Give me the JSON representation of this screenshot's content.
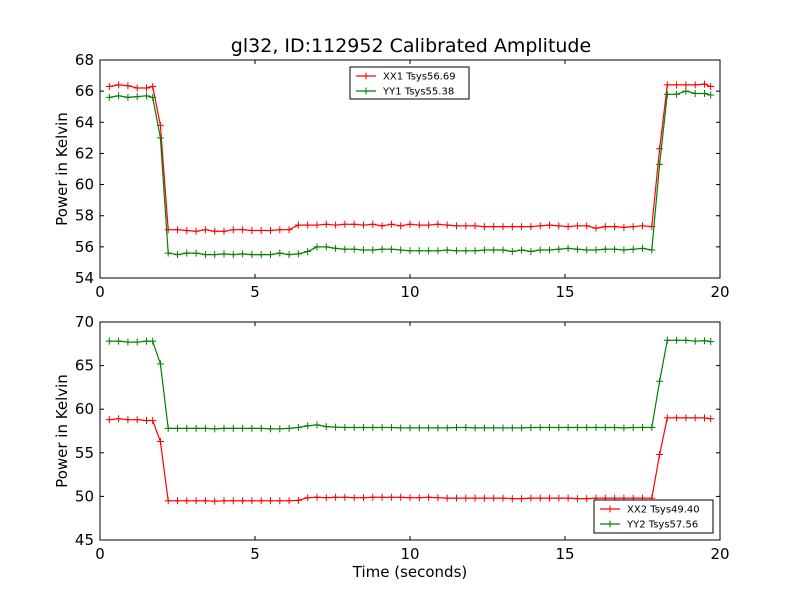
{
  "title": "gl32, ID:112952 Calibrated Amplitude",
  "xlabel": "Time (seconds)",
  "chart_data": [
    {
      "type": "line",
      "ylabel": "Power in Kelvin",
      "xlim": [
        0,
        20
      ],
      "ylim": [
        54,
        68
      ],
      "xticks": [
        0,
        5,
        10,
        15,
        20
      ],
      "yticks": [
        54,
        56,
        58,
        60,
        62,
        64,
        66,
        68
      ],
      "legend_position": "top-center",
      "grid": false,
      "x": [
        0.3,
        0.6,
        0.9,
        1.2,
        1.5,
        1.7,
        1.95,
        2.2,
        2.5,
        2.8,
        3.1,
        3.4,
        3.7,
        4.0,
        4.3,
        4.6,
        4.9,
        5.2,
        5.5,
        5.8,
        6.1,
        6.4,
        6.7,
        7.0,
        7.3,
        7.6,
        7.9,
        8.2,
        8.5,
        8.8,
        9.1,
        9.4,
        9.7,
        10.0,
        10.3,
        10.6,
        10.9,
        11.2,
        11.5,
        11.8,
        12.1,
        12.4,
        12.7,
        13.0,
        13.3,
        13.6,
        13.9,
        14.2,
        14.5,
        14.8,
        15.1,
        15.4,
        15.7,
        16.0,
        16.3,
        16.6,
        16.9,
        17.2,
        17.5,
        17.8,
        18.05,
        18.3,
        18.6,
        18.9,
        19.2,
        19.5,
        19.7
      ],
      "series": [
        {
          "name": "XX1 Tsys56.69",
          "color": "#ff0000",
          "values": [
            66.3,
            66.4,
            66.35,
            66.2,
            66.2,
            66.3,
            63.8,
            57.1,
            57.1,
            57.05,
            57.0,
            57.1,
            57.0,
            57.0,
            57.1,
            57.1,
            57.05,
            57.05,
            57.05,
            57.1,
            57.1,
            57.4,
            57.4,
            57.4,
            57.45,
            57.4,
            57.45,
            57.45,
            57.4,
            57.45,
            57.35,
            57.45,
            57.35,
            57.45,
            57.4,
            57.4,
            57.45,
            57.4,
            57.35,
            57.35,
            57.35,
            57.3,
            57.3,
            57.3,
            57.3,
            57.3,
            57.3,
            57.35,
            57.4,
            57.35,
            57.3,
            57.35,
            57.35,
            57.2,
            57.3,
            57.3,
            57.25,
            57.3,
            57.35,
            57.3,
            62.3,
            66.4,
            66.4,
            66.4,
            66.4,
            66.45,
            66.3
          ]
        },
        {
          "name": "YY1 Tsys55.38",
          "color": "#008000",
          "values": [
            65.6,
            65.7,
            65.6,
            65.65,
            65.7,
            65.6,
            63.0,
            55.6,
            55.5,
            55.6,
            55.6,
            55.5,
            55.5,
            55.55,
            55.5,
            55.55,
            55.5,
            55.5,
            55.5,
            55.6,
            55.5,
            55.55,
            55.7,
            56.0,
            56.0,
            55.9,
            55.85,
            55.85,
            55.8,
            55.8,
            55.85,
            55.85,
            55.8,
            55.75,
            55.75,
            55.75,
            55.75,
            55.8,
            55.75,
            55.75,
            55.75,
            55.8,
            55.8,
            55.8,
            55.7,
            55.8,
            55.7,
            55.8,
            55.8,
            55.85,
            55.9,
            55.85,
            55.8,
            55.8,
            55.85,
            55.85,
            55.8,
            55.85,
            55.9,
            55.8,
            61.3,
            65.8,
            65.8,
            66.0,
            65.85,
            65.85,
            65.75
          ]
        }
      ]
    },
    {
      "type": "line",
      "ylabel": "Power in Kelvin",
      "xlim": [
        0,
        20
      ],
      "ylim": [
        45,
        70
      ],
      "xticks": [
        0,
        5,
        10,
        15,
        20
      ],
      "yticks": [
        45,
        50,
        55,
        60,
        65,
        70
      ],
      "legend_position": "bottom-right",
      "grid": false,
      "x": [
        0.3,
        0.6,
        0.9,
        1.2,
        1.5,
        1.7,
        1.95,
        2.2,
        2.5,
        2.8,
        3.1,
        3.4,
        3.7,
        4.0,
        4.3,
        4.6,
        4.9,
        5.2,
        5.5,
        5.8,
        6.1,
        6.4,
        6.7,
        7.0,
        7.3,
        7.6,
        7.9,
        8.2,
        8.5,
        8.8,
        9.1,
        9.4,
        9.7,
        10.0,
        10.3,
        10.6,
        10.9,
        11.2,
        11.5,
        11.8,
        12.1,
        12.4,
        12.7,
        13.0,
        13.3,
        13.6,
        13.9,
        14.2,
        14.5,
        14.8,
        15.1,
        15.4,
        15.7,
        16.0,
        16.3,
        16.6,
        16.9,
        17.2,
        17.5,
        17.8,
        18.05,
        18.3,
        18.6,
        18.9,
        19.2,
        19.5,
        19.7
      ],
      "series": [
        {
          "name": "XX2 Tsys49.40",
          "color": "#ff0000",
          "values": [
            58.8,
            58.9,
            58.8,
            58.8,
            58.7,
            58.7,
            56.3,
            49.5,
            49.5,
            49.5,
            49.5,
            49.5,
            49.45,
            49.5,
            49.5,
            49.5,
            49.5,
            49.5,
            49.5,
            49.5,
            49.5,
            49.55,
            49.85,
            49.9,
            49.85,
            49.9,
            49.9,
            49.85,
            49.85,
            49.9,
            49.9,
            49.9,
            49.9,
            49.85,
            49.85,
            49.9,
            49.85,
            49.8,
            49.8,
            49.8,
            49.8,
            49.8,
            49.8,
            49.8,
            49.75,
            49.75,
            49.8,
            49.8,
            49.8,
            49.8,
            49.8,
            49.75,
            49.75,
            49.8,
            49.8,
            49.8,
            49.8,
            49.8,
            49.8,
            49.8,
            54.8,
            59.0,
            59.0,
            59.0,
            59.0,
            59.0,
            58.9
          ]
        },
        {
          "name": "YY2 Tsys57.56",
          "color": "#008000",
          "values": [
            67.8,
            67.8,
            67.7,
            67.7,
            67.8,
            67.8,
            65.2,
            57.8,
            57.8,
            57.8,
            57.8,
            57.8,
            57.75,
            57.8,
            57.8,
            57.8,
            57.8,
            57.8,
            57.75,
            57.75,
            57.8,
            57.9,
            58.1,
            58.2,
            58.0,
            57.95,
            57.9,
            57.9,
            57.9,
            57.9,
            57.9,
            57.9,
            57.85,
            57.85,
            57.85,
            57.85,
            57.85,
            57.85,
            57.9,
            57.9,
            57.85,
            57.85,
            57.85,
            57.85,
            57.85,
            57.85,
            57.9,
            57.9,
            57.9,
            57.9,
            57.9,
            57.9,
            57.9,
            57.9,
            57.9,
            57.9,
            57.85,
            57.9,
            57.9,
            57.9,
            63.2,
            67.9,
            67.9,
            67.9,
            67.8,
            67.85,
            67.75
          ]
        }
      ]
    }
  ]
}
